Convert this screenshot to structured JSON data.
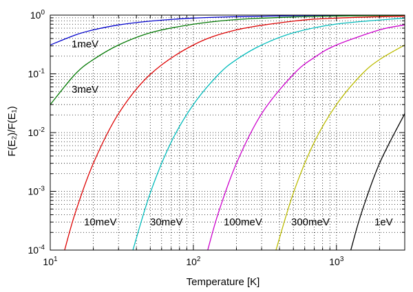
{
  "chart_data": {
    "type": "line",
    "xlabel": "Temperature [K]",
    "ylabel": "F(E₂)/F(E₁)",
    "xscale": "log",
    "yscale": "log",
    "xlim": [
      10,
      3000
    ],
    "ylim": [
      0.0001,
      1
    ],
    "grid": "dotted, major and minor",
    "legend": "none",
    "x_major_ticks": [
      {
        "value": 10,
        "base": "10",
        "exp": "1"
      },
      {
        "value": 100,
        "base": "10",
        "exp": "2"
      },
      {
        "value": 1000,
        "base": "10",
        "exp": "3"
      }
    ],
    "y_major_ticks": [
      {
        "value": 0.0001,
        "base": "10",
        "exp": "-4"
      },
      {
        "value": 0.001,
        "base": "10",
        "exp": "-3"
      },
      {
        "value": 0.01,
        "base": "10",
        "exp": "-2"
      },
      {
        "value": 0.1,
        "base": "10",
        "exp": "-1"
      },
      {
        "value": 1,
        "base": "10",
        "exp": "0"
      }
    ],
    "series": [
      {
        "label": "1meV",
        "color": "#0000cc",
        "points": [
          [
            10,
            0.31
          ],
          [
            15,
            0.46
          ],
          [
            20,
            0.56
          ],
          [
            30,
            0.68
          ],
          [
            50,
            0.79
          ],
          [
            100,
            0.89
          ],
          [
            200,
            0.94
          ],
          [
            500,
            0.977
          ],
          [
            1000,
            0.988
          ],
          [
            3000,
            0.996
          ]
        ]
      },
      {
        "label": "3meV",
        "color": "#007700",
        "points": [
          [
            10,
            0.03
          ],
          [
            15,
            0.1
          ],
          [
            20,
            0.175
          ],
          [
            30,
            0.31
          ],
          [
            50,
            0.5
          ],
          [
            100,
            0.7
          ],
          [
            200,
            0.84
          ],
          [
            500,
            0.93
          ],
          [
            1000,
            0.965
          ],
          [
            3000,
            0.988
          ]
        ]
      },
      {
        "label": "10meV",
        "color": "#dd0000",
        "points": [
          [
            12.6,
            0.0001
          ],
          [
            15,
            0.00044
          ],
          [
            20,
            0.003
          ],
          [
            30,
            0.021
          ],
          [
            50,
            0.098
          ],
          [
            100,
            0.31
          ],
          [
            200,
            0.56
          ],
          [
            500,
            0.79
          ],
          [
            1000,
            0.89
          ],
          [
            3000,
            0.962
          ]
        ]
      },
      {
        "label": "30meV",
        "color": "#00bbbb",
        "points": [
          [
            37.8,
            0.0001
          ],
          [
            50,
            0.00094
          ],
          [
            70,
            0.0069
          ],
          [
            100,
            0.03
          ],
          [
            150,
            0.098
          ],
          [
            200,
            0.175
          ],
          [
            300,
            0.31
          ],
          [
            500,
            0.5
          ],
          [
            1000,
            0.705
          ],
          [
            3000,
            0.89
          ]
        ]
      },
      {
        "label": "100meV",
        "color": "#cc00cc",
        "points": [
          [
            126,
            0.0001
          ],
          [
            150,
            0.00044
          ],
          [
            200,
            0.003
          ],
          [
            300,
            0.021
          ],
          [
            500,
            0.098
          ],
          [
            700,
            0.19
          ],
          [
            1000,
            0.31
          ],
          [
            2000,
            0.56
          ],
          [
            3000,
            0.68
          ]
        ]
      },
      {
        "label": "300meV",
        "color": "#bbbb00",
        "points": [
          [
            378,
            0.0001
          ],
          [
            500,
            0.00094
          ],
          [
            700,
            0.0069
          ],
          [
            1000,
            0.03
          ],
          [
            1500,
            0.098
          ],
          [
            2000,
            0.175
          ],
          [
            3000,
            0.31
          ]
        ]
      },
      {
        "label": "1eV",
        "color": "#000000",
        "points": [
          [
            1260,
            0.0001
          ],
          [
            1500,
            0.00044
          ],
          [
            2000,
            0.003
          ],
          [
            3000,
            0.021
          ]
        ]
      }
    ]
  }
}
